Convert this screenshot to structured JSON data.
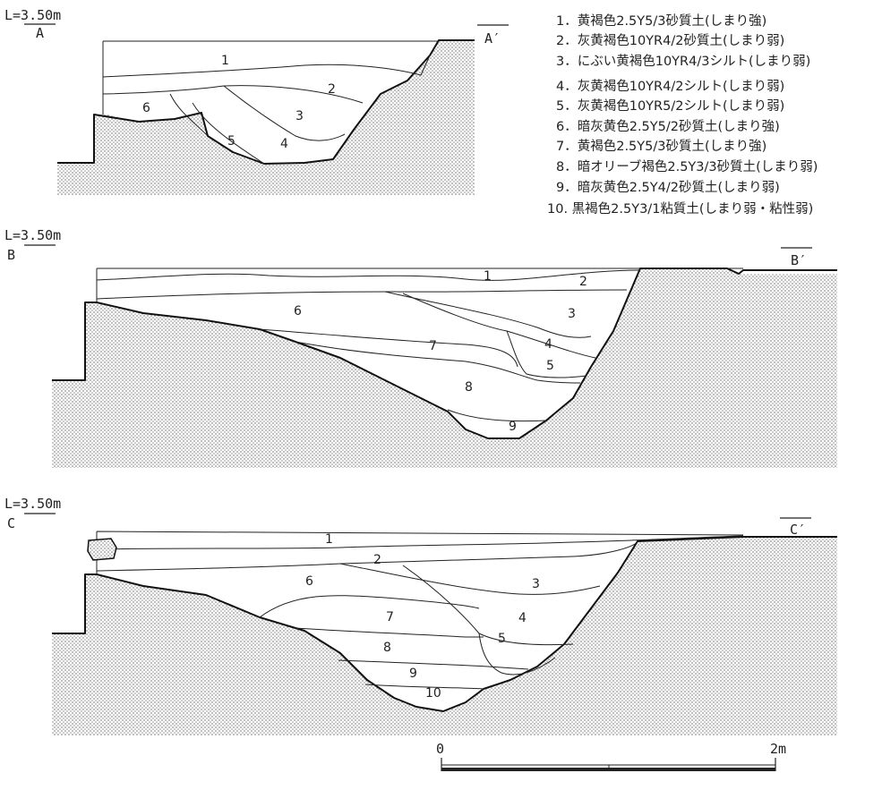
{
  "sections": [
    {
      "elevation": "L=3.50m",
      "start_label": "A",
      "end_label": "A′",
      "layer_numbers": [
        "1",
        "2",
        "3",
        "4",
        "5",
        "6"
      ]
    },
    {
      "elevation": "L=3.50m",
      "start_label": "B",
      "end_label": "B′",
      "layer_numbers": [
        "1",
        "2",
        "3",
        "4",
        "5",
        "6",
        "7",
        "8",
        "9"
      ]
    },
    {
      "elevation": "L=3.50m",
      "start_label": "C",
      "end_label": "C′",
      "layer_numbers": [
        "1",
        "2",
        "3",
        "4",
        "5",
        "6",
        "7",
        "8",
        "9",
        "10"
      ]
    }
  ],
  "legend": [
    "1．黄褐色2.5Y5/3砂質土(しまり強)",
    "2．灰黄褐色10YR4/2砂質土(しまり弱)",
    "3．にぶい黄褐色10YR4/3シルト(しまり弱)",
    "4．灰黄褐色10YR4/2シルト(しまり弱)",
    "5．灰黄褐色10YR5/2シルト(しまり弱)",
    "6．暗灰黄色2.5Y5/2砂質土(しまり強)",
    "7．黄褐色2.5Y5/3砂質土(しまり強)",
    "8．暗オリーブ褐色2.5Y3/3砂質土(しまり弱)",
    "9．暗灰黄色2.5Y4/2砂質土(しまり弱)",
    "10. 黒褐色2.5Y3/1粘質土(しまり弱・粘性弱)"
  ],
  "scale_bar": {
    "start": "0",
    "end": "2m"
  }
}
